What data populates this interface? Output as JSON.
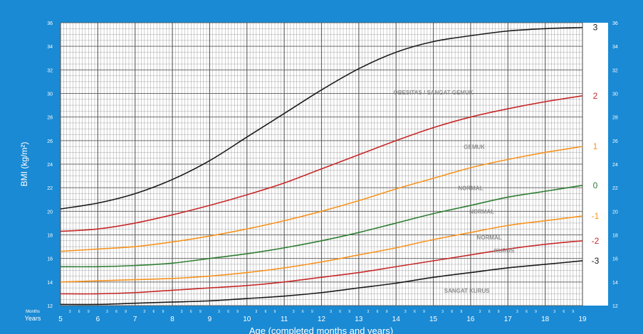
{
  "chart_data": {
    "type": "line",
    "xlabel": "Age (completed months and years)",
    "ylabel": "BMI (kg/m²)",
    "row_labels": {
      "months": "Months",
      "years": "Years"
    },
    "xlim": [
      5,
      19
    ],
    "ylim": [
      12,
      36
    ],
    "years": [
      5,
      6,
      7,
      8,
      9,
      10,
      11,
      12,
      13,
      14,
      15,
      16,
      17,
      18,
      19
    ],
    "month_ticks": [
      "3",
      "6",
      "9"
    ],
    "y_ticks": [
      12,
      14,
      16,
      18,
      20,
      22,
      24,
      26,
      28,
      30,
      32,
      34,
      36
    ],
    "grid": true,
    "series": [
      {
        "name": "3",
        "color": "#1a1a1a",
        "x": [
          5,
          6,
          7,
          8,
          9,
          10,
          11,
          12,
          13,
          14,
          15,
          16,
          17,
          18,
          19
        ],
        "y": [
          20.2,
          20.7,
          21.5,
          22.7,
          24.3,
          26.3,
          28.3,
          30.3,
          32.1,
          33.5,
          34.4,
          34.9,
          35.3,
          35.5,
          35.6
        ]
      },
      {
        "name": "2",
        "color": "#c62828",
        "x": [
          5,
          6,
          7,
          8,
          9,
          10,
          11,
          12,
          13,
          14,
          15,
          16,
          17,
          18,
          19
        ],
        "y": [
          18.3,
          18.5,
          19.0,
          19.7,
          20.5,
          21.4,
          22.4,
          23.6,
          24.8,
          26.0,
          27.1,
          28.0,
          28.7,
          29.3,
          29.8
        ]
      },
      {
        "name": "1",
        "color": "#f7931e",
        "x": [
          5,
          6,
          7,
          8,
          9,
          10,
          11,
          12,
          13,
          14,
          15,
          16,
          17,
          18,
          19
        ],
        "y": [
          16.6,
          16.8,
          17.0,
          17.4,
          17.9,
          18.5,
          19.2,
          20.0,
          20.9,
          21.9,
          22.8,
          23.7,
          24.4,
          25.0,
          25.5
        ]
      },
      {
        "name": "0",
        "color": "#2e7d32",
        "x": [
          5,
          6,
          7,
          8,
          9,
          10,
          11,
          12,
          13,
          14,
          15,
          16,
          17,
          18,
          19
        ],
        "y": [
          15.3,
          15.3,
          15.4,
          15.6,
          16.0,
          16.4,
          16.9,
          17.5,
          18.2,
          19.0,
          19.8,
          20.5,
          21.2,
          21.7,
          22.2
        ]
      },
      {
        "name": "-1",
        "color": "#f7931e",
        "x": [
          5,
          6,
          7,
          8,
          9,
          10,
          11,
          12,
          13,
          14,
          15,
          16,
          17,
          18,
          19
        ],
        "y": [
          14.0,
          14.1,
          14.2,
          14.3,
          14.5,
          14.8,
          15.2,
          15.7,
          16.3,
          16.9,
          17.6,
          18.2,
          18.8,
          19.2,
          19.6
        ]
      },
      {
        "name": "-2",
        "color": "#c62828",
        "x": [
          5,
          6,
          7,
          8,
          9,
          10,
          11,
          12,
          13,
          14,
          15,
          16,
          17,
          18,
          19
        ],
        "y": [
          13.0,
          13.0,
          13.1,
          13.3,
          13.5,
          13.7,
          14.0,
          14.4,
          14.8,
          15.3,
          15.8,
          16.3,
          16.8,
          17.2,
          17.5
        ]
      },
      {
        "name": "-3",
        "color": "#1a1a1a",
        "x": [
          5,
          6,
          7,
          8,
          9,
          10,
          11,
          12,
          13,
          14,
          15,
          16,
          17,
          18,
          19
        ],
        "y": [
          12.1,
          12.1,
          12.2,
          12.3,
          12.4,
          12.6,
          12.8,
          13.1,
          13.5,
          13.9,
          14.4,
          14.8,
          15.2,
          15.5,
          15.8
        ]
      }
    ],
    "annotations": [
      {
        "text": "OBESITAS / SANGAT GEMUK",
        "x": 15.0,
        "y": 29.9
      },
      {
        "text": "GEMUK",
        "x": 16.1,
        "y": 25.3
      },
      {
        "text": "NORMAL",
        "x": 16.0,
        "y": 21.8
      },
      {
        "text": "NORMAL",
        "x": 16.3,
        "y": 19.8
      },
      {
        "text": "NORMAL",
        "x": 16.5,
        "y": 17.6
      },
      {
        "text": "KURUS",
        "x": 16.9,
        "y": 16.5
      },
      {
        "text": "SANGAT KURUS",
        "x": 15.9,
        "y": 13.1
      }
    ],
    "colors": {
      "frame": "#1a8ad4",
      "grid": "#555555",
      "annotation": "#8c8c8c"
    }
  }
}
